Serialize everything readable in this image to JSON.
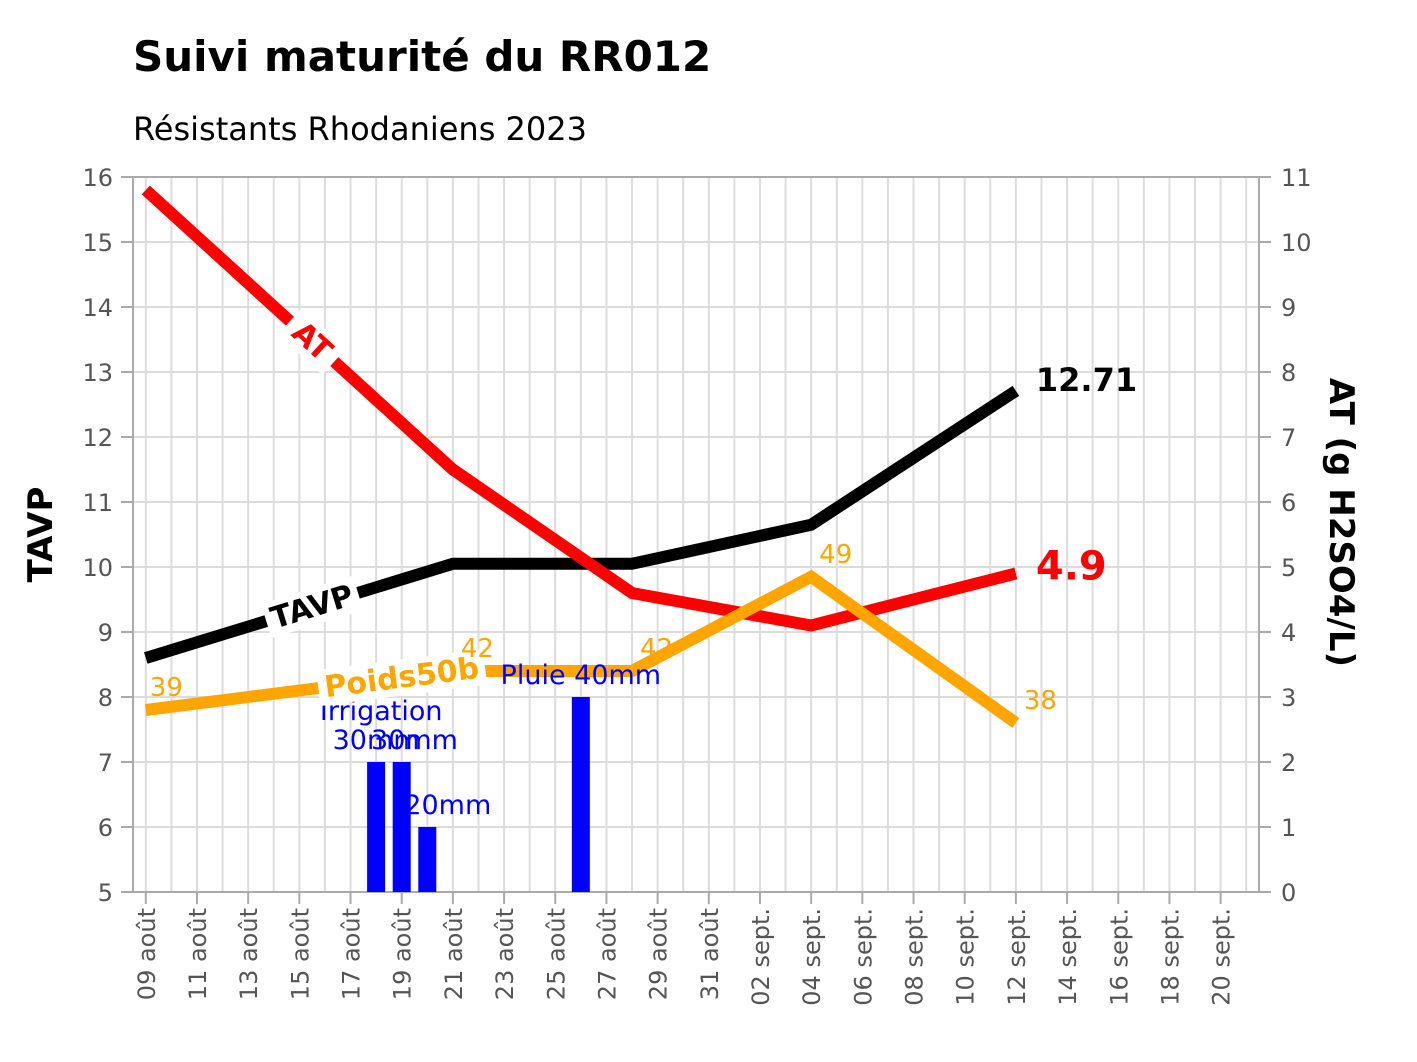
{
  "chart_data": {
    "type": "line",
    "title": "Suivi maturité du RR012",
    "subtitle": "Résistants Rhodaniens 2023",
    "ylabel_left": "TAVP",
    "ylabel_right": "AT (g H2SO4/L)",
    "ylim_left": [
      5,
      16
    ],
    "ylim_right": [
      0,
      11
    ],
    "yticks_left": [
      5,
      6,
      7,
      8,
      9,
      10,
      11,
      12,
      13,
      14,
      15,
      16
    ],
    "yticks_right": [
      0,
      1,
      2,
      3,
      4,
      5,
      6,
      7,
      8,
      9,
      10,
      11
    ],
    "x_start_day": 9,
    "x_end_day": 52,
    "xticks": [
      {
        "day": 9,
        "label": "09 août"
      },
      {
        "day": 11,
        "label": "11 août"
      },
      {
        "day": 13,
        "label": "13 août"
      },
      {
        "day": 15,
        "label": "15 août"
      },
      {
        "day": 17,
        "label": "17 août"
      },
      {
        "day": 19,
        "label": "19 août"
      },
      {
        "day": 21,
        "label": "21 août"
      },
      {
        "day": 23,
        "label": "23 août"
      },
      {
        "day": 25,
        "label": "25 août"
      },
      {
        "day": 27,
        "label": "27 août"
      },
      {
        "day": 29,
        "label": "29 août"
      },
      {
        "day": 31,
        "label": "31 août"
      },
      {
        "day": 33,
        "label": "02 sept."
      },
      {
        "day": 35,
        "label": "04 sept."
      },
      {
        "day": 37,
        "label": "06 sept."
      },
      {
        "day": 39,
        "label": "08 sept."
      },
      {
        "day": 41,
        "label": "10 sept."
      },
      {
        "day": 43,
        "label": "12 sept."
      },
      {
        "day": 45,
        "label": "14 sept."
      },
      {
        "day": 47,
        "label": "16 sept."
      },
      {
        "day": 49,
        "label": "18 sept."
      },
      {
        "day": 51,
        "label": "20 sept."
      }
    ],
    "series": [
      {
        "name": "TAVP",
        "axis": "left",
        "color": "#000000",
        "x": [
          9,
          21,
          28,
          35,
          43
        ],
        "values": [
          8.6,
          10.05,
          10.05,
          10.65,
          12.71
        ],
        "line_label": "TAVP",
        "line_label_day": 15.5,
        "end_label": "12.71"
      },
      {
        "name": "AT",
        "axis": "right",
        "color": "#ff0000",
        "x": [
          9,
          21,
          28,
          35,
          43
        ],
        "values": [
          10.8,
          6.5,
          4.6,
          4.1,
          4.9
        ],
        "line_label": "AT",
        "line_label_day": 15.5,
        "end_label": "4.9"
      },
      {
        "name": "Poids50b",
        "axis": "left",
        "color": "#ffa500",
        "x": [
          9,
          21,
          28,
          35,
          43
        ],
        "values": [
          7.8,
          8.4,
          8.4,
          9.85,
          7.6
        ],
        "line_label": "Poids50b",
        "line_label_day": 19,
        "point_labels": [
          "39",
          "42",
          "42",
          "49",
          "38"
        ]
      }
    ],
    "bars": {
      "name": "Irrigation / Pluie",
      "axis": "right",
      "color": "#0000ff",
      "x": [
        18,
        19,
        20,
        26
      ],
      "values": [
        2,
        2,
        1,
        3
      ],
      "labels": [
        {
          "text": "Irrigation",
          "day": 18.2,
          "value": 2.65
        },
        {
          "text": "30mm",
          "day": 18.0,
          "value": 2.2
        },
        {
          "text": "30mm",
          "day": 19.5,
          "value": 2.2
        },
        {
          "text": "20mm",
          "day": 20.8,
          "value": 1.2
        },
        {
          "text": "Pluie 40mm",
          "day": 26.0,
          "value": 3.2
        }
      ]
    }
  }
}
